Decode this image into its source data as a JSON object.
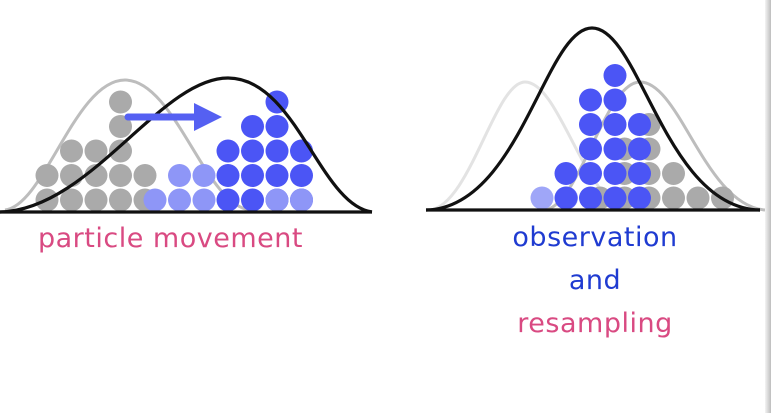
{
  "captions": {
    "left": "particle movement",
    "right_line1": "observation",
    "right_line2": "and",
    "right_line3": "resampling"
  },
  "colors": {
    "caption_pink": "#d94a82",
    "caption_blue": "#1f3bd1",
    "particle_gray": "#aaaaaa",
    "particle_blue_light": "#8e96f7",
    "particle_blue_dark": "#4b55f5",
    "arrow_blue": "#5560f2",
    "curve_black": "#111111",
    "curve_gray": "#bdbdbd",
    "curve_light": "#e3e3e3"
  },
  "panels": {
    "movement": {
      "columns_gray": [
        2,
        3,
        3,
        5,
        2
      ],
      "columns_blue_light": [
        1,
        2,
        2
      ],
      "columns_blue_dark": [
        3,
        4,
        5,
        3
      ],
      "columns_blue_tail": [
        1,
        1
      ]
    },
    "resampling": {
      "columns_gray": [
        1,
        3,
        4,
        2,
        1,
        1
      ],
      "columns_blue": [
        2,
        5,
        6,
        4
      ],
      "columns_blue_faded": [
        1,
        1
      ]
    }
  },
  "icons": {
    "movement_arrow": "arrow-right-icon"
  }
}
